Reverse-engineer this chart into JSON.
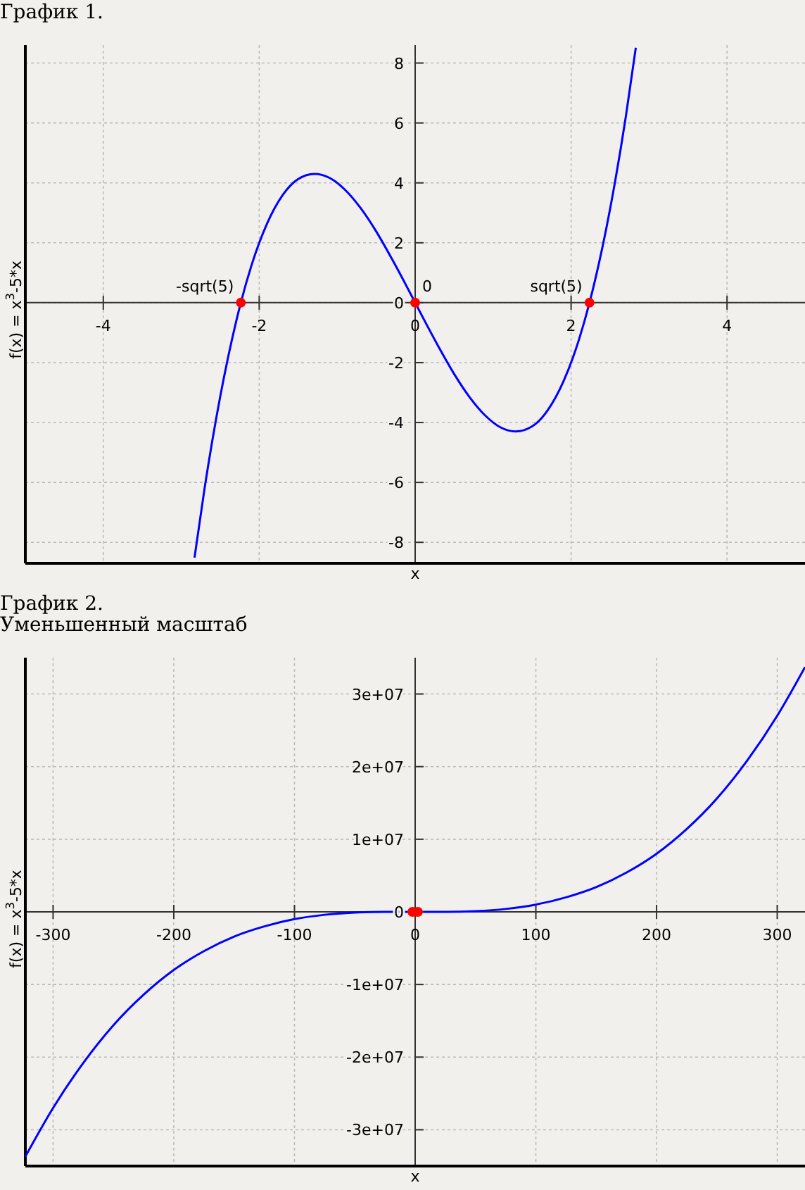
{
  "chart_data": [
    {
      "type": "line",
      "title": "График 1.",
      "xlabel": "x",
      "ylabel": "f(x) = x$^{3}$-5*x",
      "xlim": [
        -5,
        5
      ],
      "ylim": [
        -8.7,
        8.6
      ],
      "xticks": [
        -4,
        -2,
        0,
        2,
        4
      ],
      "yticks": [
        -8,
        -6,
        -4,
        -2,
        0,
        2,
        4,
        6,
        8
      ],
      "grid": true,
      "line_style": "solid",
      "series": [
        {
          "type": "line",
          "color": "#0000ff",
          "x": [
            -2.83,
            -2.7,
            -2.5,
            -2.3,
            -2.236,
            -2.1,
            -1.9,
            -1.7,
            -1.5,
            -1.29,
            -1.1,
            -0.9,
            -0.7,
            -0.5,
            -0.3,
            -0.1,
            0,
            0.1,
            0.3,
            0.5,
            0.7,
            0.9,
            1.1,
            1.29,
            1.5,
            1.7,
            1.9,
            2.1,
            2.236,
            2.3,
            2.5,
            2.7,
            2.83
          ],
          "values": [
            -8.51,
            -6.18,
            -3.13,
            -0.67,
            0,
            1.24,
            2.64,
            3.59,
            4.13,
            4.3,
            4.17,
            3.77,
            3.16,
            2.38,
            1.47,
            0.5,
            0,
            -0.5,
            -1.47,
            -2.38,
            -3.16,
            -3.77,
            -4.17,
            -4.3,
            -4.13,
            -3.59,
            -2.64,
            -1.24,
            0,
            0.67,
            3.13,
            6.18,
            8.51
          ]
        },
        {
          "type": "scatter",
          "color": "#ff0000",
          "marker": "circle",
          "x": [
            -2.236,
            0,
            2.236
          ],
          "values": [
            0,
            0,
            0
          ]
        }
      ],
      "annotations": [
        {
          "text": "-sqrt(5)",
          "x": -2.236,
          "y": 0
        },
        {
          "text": "0",
          "x": 0,
          "y": 0
        },
        {
          "text": "sqrt(5)",
          "x": 2.236,
          "y": 0
        }
      ]
    },
    {
      "type": "line",
      "title": "График 2.",
      "subtitle": "Уменьшенный масштаб",
      "xlabel": "x",
      "ylabel": "f(x) = x$^{3}$-5*x",
      "xlim": [
        -323,
        323
      ],
      "ylim": [
        -35000000,
        35000000
      ],
      "xticks": [
        -300,
        -200,
        -100,
        0,
        100,
        200,
        300
      ],
      "yticks": [
        {
          "value": -30000000,
          "label": "-3e+07"
        },
        {
          "value": -20000000,
          "label": "-2e+07"
        },
        {
          "value": -10000000,
          "label": "-1e+07"
        },
        0,
        {
          "value": 10000000,
          "label": "1e+07"
        },
        {
          "value": 20000000,
          "label": "2e+07"
        },
        {
          "value": 30000000,
          "label": "3e+07"
        }
      ],
      "grid": true,
      "line_style": "solid",
      "series": [
        {
          "type": "line",
          "color": "#0000ff",
          "x": [
            -323,
            -300,
            -275,
            -250,
            -225,
            -200,
            -175,
            -150,
            -125,
            -100,
            -75,
            -50,
            -25,
            0,
            25,
            50,
            75,
            100,
            125,
            150,
            175,
            200,
            225,
            250,
            275,
            300,
            323
          ],
          "values": [
            -33700000,
            -27000000,
            -20800000,
            -15600000,
            -11400000,
            -8000000,
            -5400000,
            -3400000,
            -2000000,
            -1000000,
            -400000,
            -100000,
            0,
            0,
            0,
            100000,
            400000,
            1000000,
            2000000,
            3400000,
            5400000,
            8000000,
            11400000,
            15600000,
            20800000,
            27000000,
            33700000
          ]
        },
        {
          "type": "scatter",
          "color": "#ff0000",
          "marker": "circle",
          "x": [
            -2.236,
            2.236
          ],
          "values": [
            0,
            0
          ]
        }
      ]
    }
  ]
}
